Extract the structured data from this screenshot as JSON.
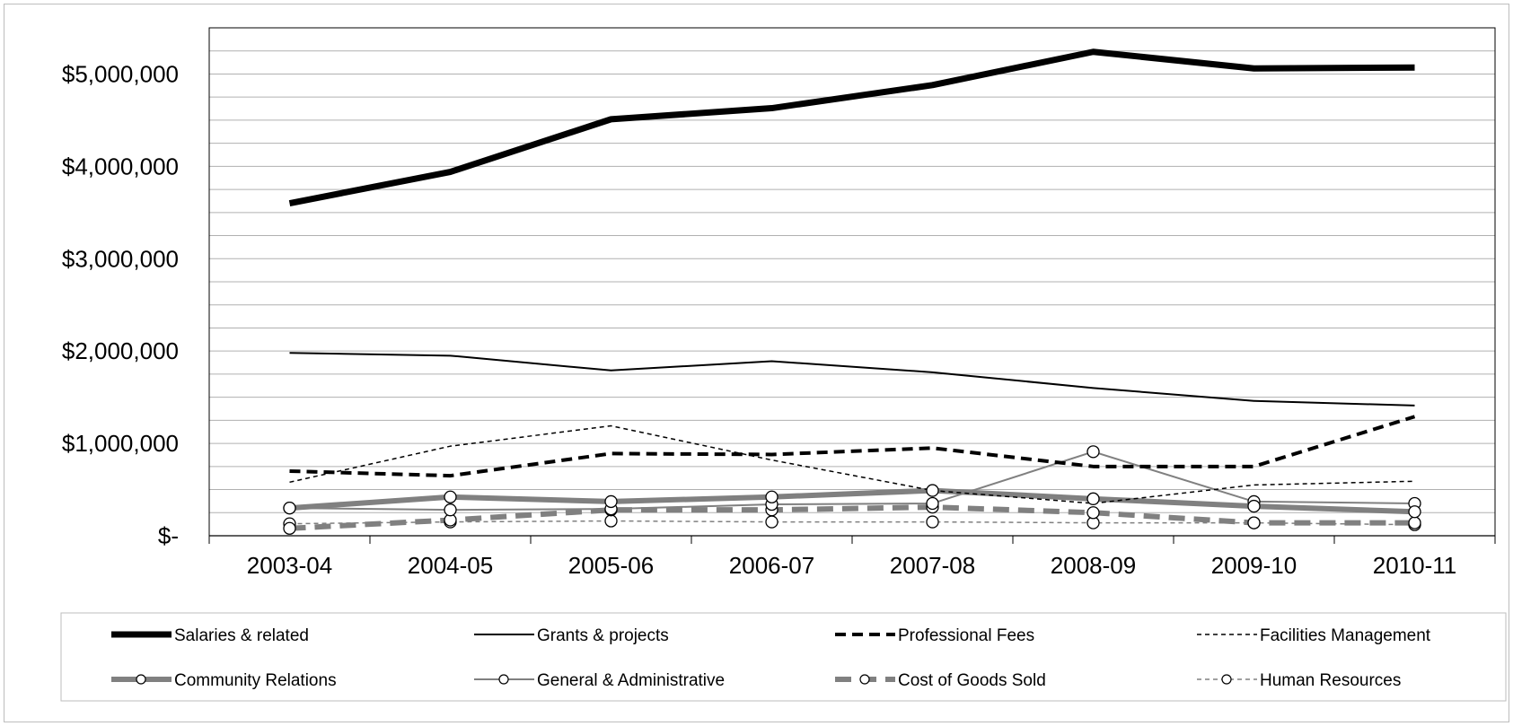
{
  "chart_data": {
    "type": "line",
    "categories": [
      "2003-04",
      "2004-05",
      "2005-06",
      "2006-07",
      "2007-08",
      "2008-09",
      "2009-10",
      "2010-11"
    ],
    "y_tick_labels": [
      "$-",
      "$1,000,000",
      "$2,000,000",
      "$3,000,000",
      "$4,000,000",
      "$5,000,000"
    ],
    "y_ticks": [
      0,
      1000000,
      2000000,
      3000000,
      4000000,
      5000000
    ],
    "ylim": [
      0,
      5500000
    ],
    "grid": true,
    "legend_placement": "bottom",
    "series": [
      {
        "name": "Salaries & related",
        "color": "#000000",
        "values": [
          3600000,
          3940000,
          4510000,
          4630000,
          4880000,
          5240000,
          5060000,
          5070000
        ]
      },
      {
        "name": "Grants & projects",
        "color": "#000000",
        "values": [
          1980000,
          1950000,
          1790000,
          1890000,
          1770000,
          1600000,
          1460000,
          1410000
        ]
      },
      {
        "name": "Professional Fees",
        "color": "#000000",
        "values": [
          700000,
          650000,
          890000,
          880000,
          950000,
          750000,
          750000,
          1290000
        ]
      },
      {
        "name": "Facilities Management",
        "color": "#000000",
        "values": [
          580000,
          970000,
          1190000,
          820000,
          490000,
          350000,
          550000,
          590000
        ]
      },
      {
        "name": "Community Relations",
        "color": "#808080",
        "values": [
          300000,
          420000,
          370000,
          420000,
          490000,
          400000,
          320000,
          260000
        ]
      },
      {
        "name": "General & Administrative",
        "color": "#808080",
        "values": [
          300000,
          280000,
          290000,
          340000,
          350000,
          910000,
          370000,
          350000
        ]
      },
      {
        "name": "Cost of Goods Sold",
        "color": "#808080",
        "values": [
          80000,
          170000,
          280000,
          280000,
          310000,
          250000,
          140000,
          140000
        ]
      },
      {
        "name": "Human Resources",
        "color": "#808080",
        "values": [
          130000,
          150000,
          160000,
          150000,
          150000,
          140000,
          140000,
          120000
        ]
      }
    ]
  }
}
